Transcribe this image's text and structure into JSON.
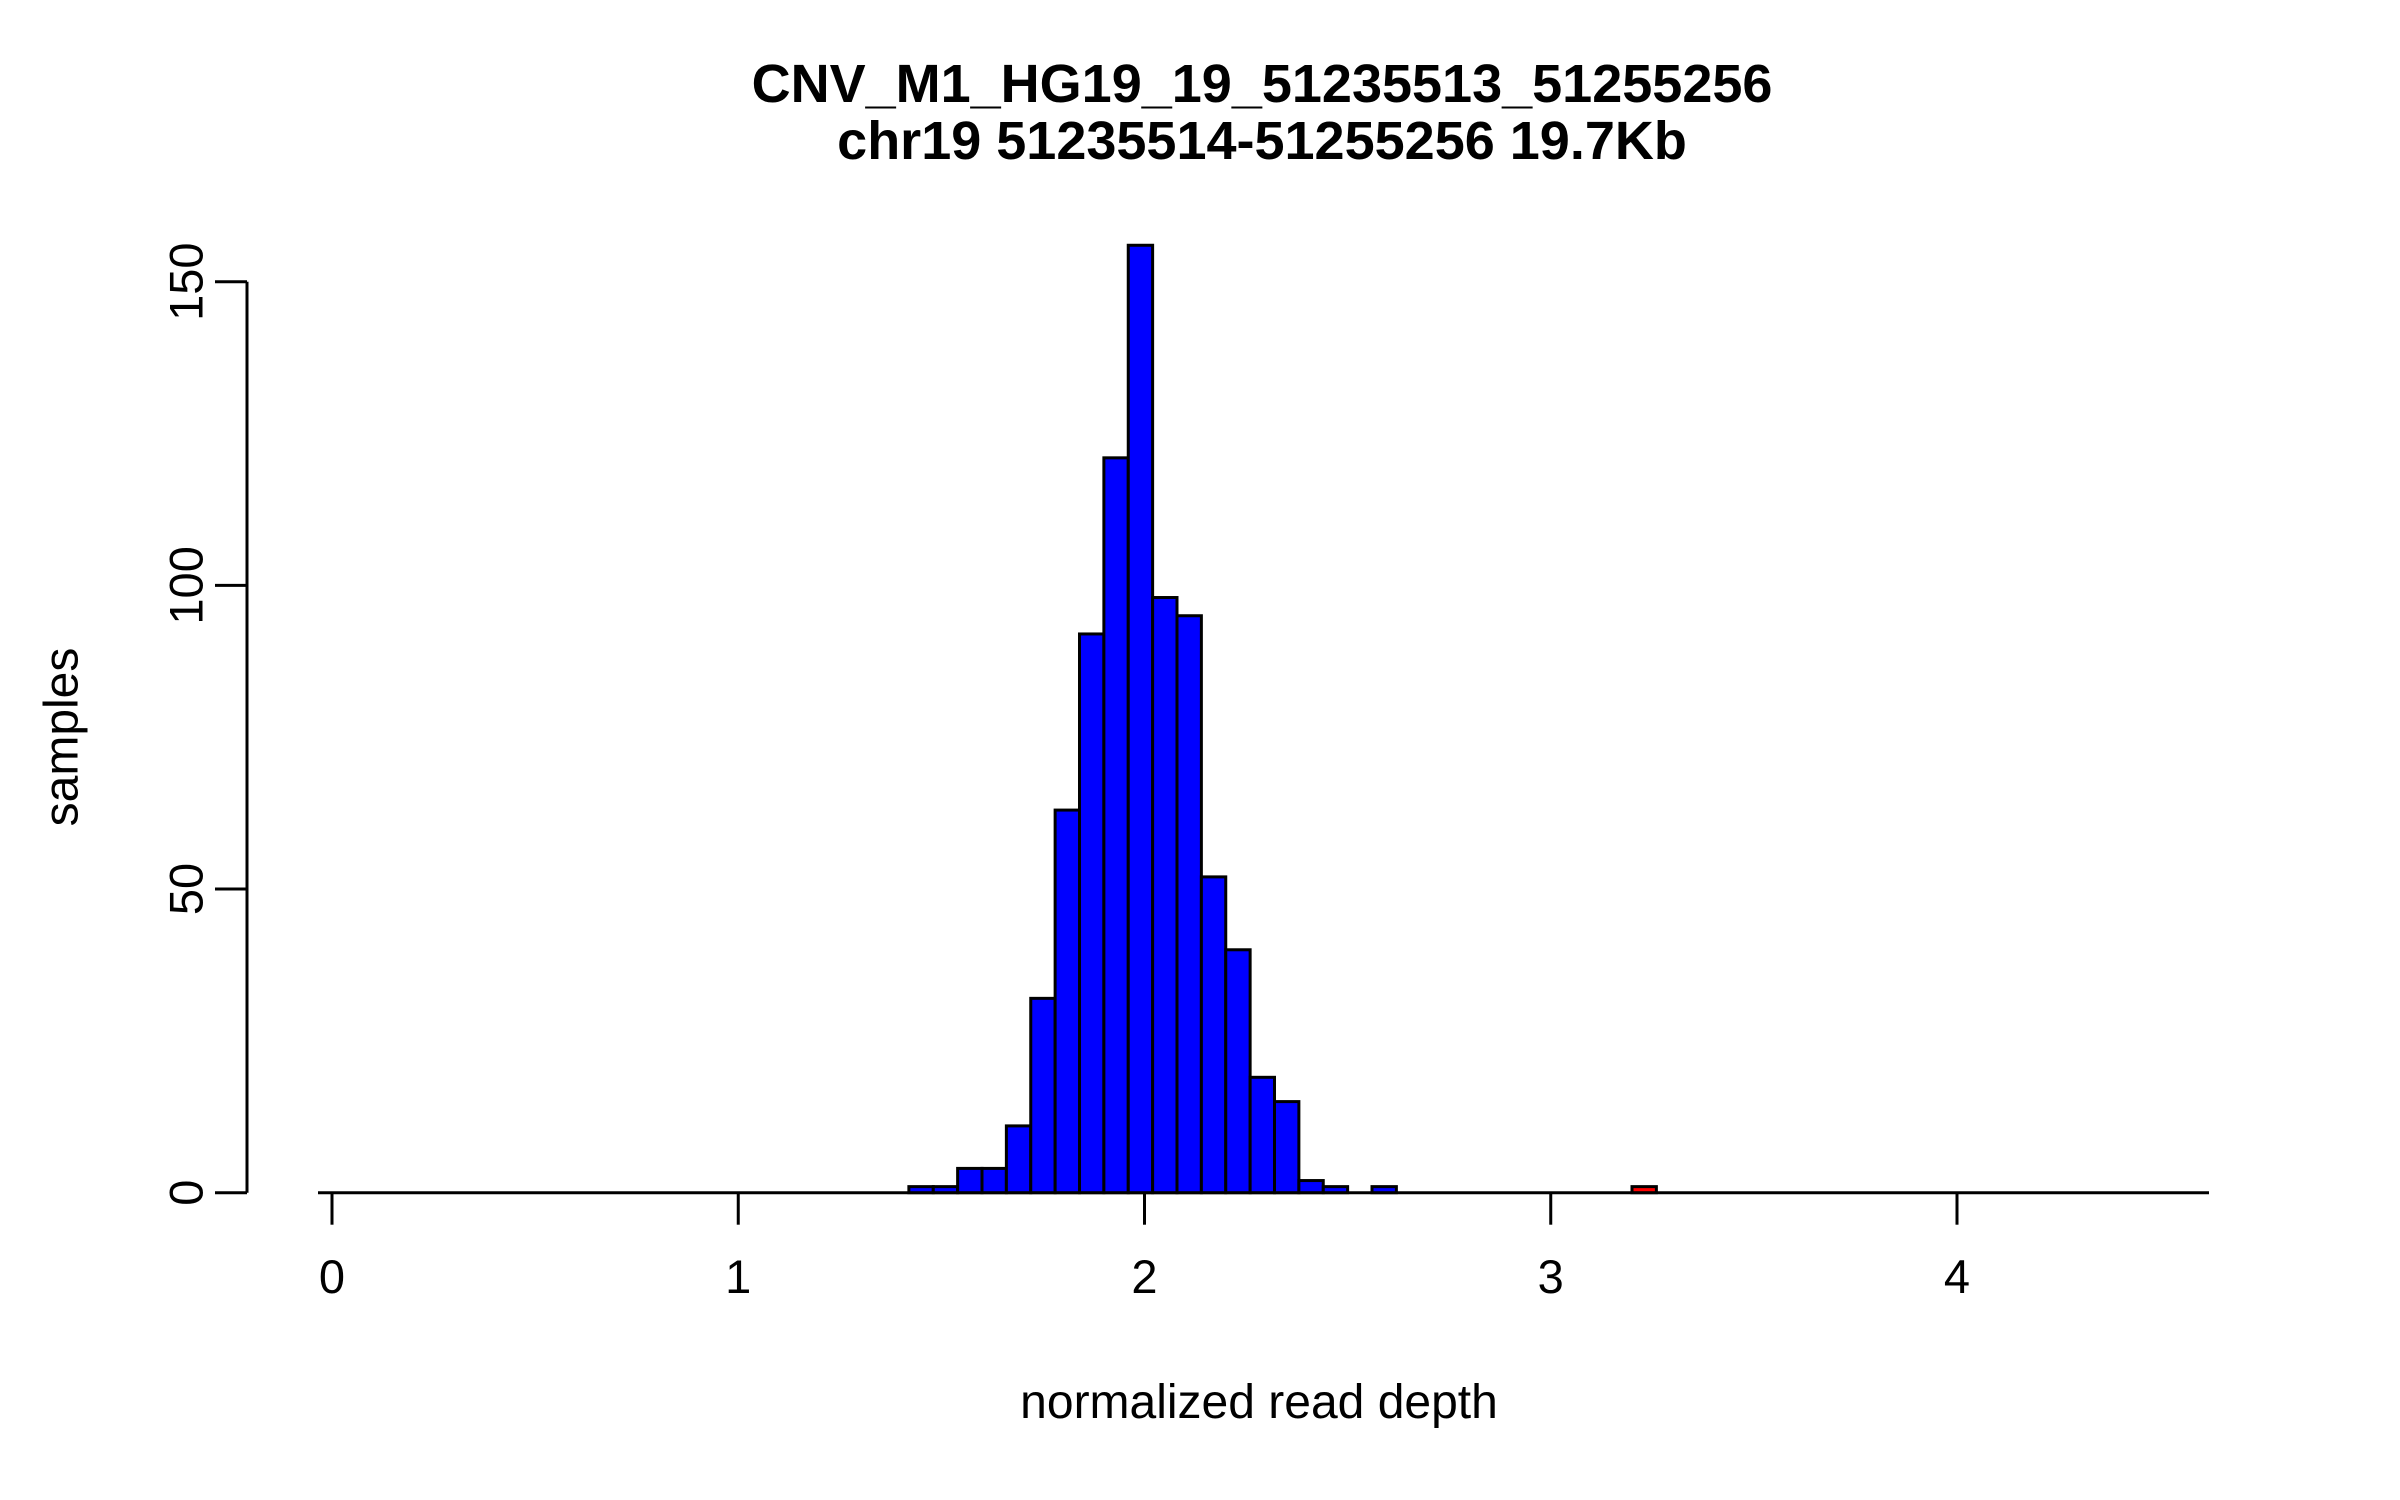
{
  "title": {
    "line1": "CNV_M1_HG19_19_51235513_51255256",
    "line2": "chr19 51235514-51255256 19.7Kb"
  },
  "chart_data": {
    "type": "bar",
    "subtype": "histogram",
    "title": "CNV_M1_HG19_19_51235513_51255256",
    "subtitle": "chr19 51235514-51255256 19.7Kb",
    "xlabel": "normalized read depth",
    "ylabel": "samples",
    "x_ticks": [
      0,
      1,
      2,
      3,
      4
    ],
    "y_ticks": [
      0,
      50,
      100,
      150
    ],
    "xlim": [
      -0.03,
      4.65
    ],
    "ylim": [
      0,
      156
    ],
    "grid": false,
    "legend": "none",
    "bin_width": 0.06,
    "bar_fill": "#0000FF",
    "outlier_fill": "#FF0000",
    "bar_border": "#000000",
    "bins": [
      {
        "x0": 1.42,
        "x1": 1.48,
        "count": 1
      },
      {
        "x0": 1.48,
        "x1": 1.54,
        "count": 1
      },
      {
        "x0": 1.54,
        "x1": 1.6,
        "count": 4
      },
      {
        "x0": 1.6,
        "x1": 1.66,
        "count": 4
      },
      {
        "x0": 1.66,
        "x1": 1.72,
        "count": 11
      },
      {
        "x0": 1.72,
        "x1": 1.78,
        "count": 32
      },
      {
        "x0": 1.78,
        "x1": 1.84,
        "count": 63
      },
      {
        "x0": 1.84,
        "x1": 1.9,
        "count": 92
      },
      {
        "x0": 1.9,
        "x1": 1.96,
        "count": 121
      },
      {
        "x0": 1.96,
        "x1": 2.02,
        "count": 156
      },
      {
        "x0": 2.02,
        "x1": 2.08,
        "count": 98
      },
      {
        "x0": 2.08,
        "x1": 2.14,
        "count": 95
      },
      {
        "x0": 2.14,
        "x1": 2.2,
        "count": 52
      },
      {
        "x0": 2.2,
        "x1": 2.26,
        "count": 40
      },
      {
        "x0": 2.26,
        "x1": 2.32,
        "count": 19
      },
      {
        "x0": 2.32,
        "x1": 2.38,
        "count": 15
      },
      {
        "x0": 2.38,
        "x1": 2.44,
        "count": 2
      },
      {
        "x0": 2.44,
        "x1": 2.5,
        "count": 1
      },
      {
        "x0": 2.5,
        "x1": 2.56,
        "count": 0
      },
      {
        "x0": 2.56,
        "x1": 2.62,
        "count": 1
      },
      {
        "x0": 3.2,
        "x1": 3.26,
        "count": 1,
        "color": "#FF0000"
      }
    ]
  }
}
